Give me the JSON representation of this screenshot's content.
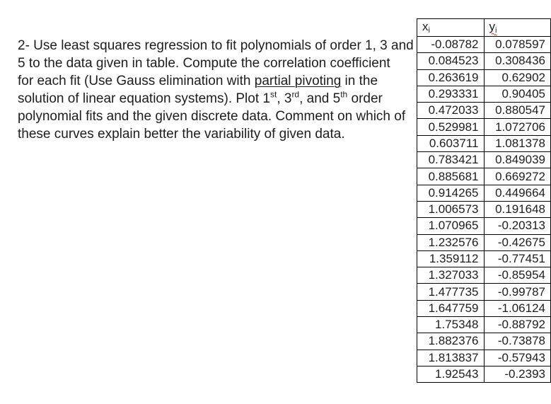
{
  "colors": {
    "text": "#1d1d1d",
    "table_border": "#000000",
    "spellcheck_squiggle": "#e0302f",
    "background": "#ffffff"
  },
  "problem": {
    "lines": [
      {
        "segments": [
          {
            "text": "2- Use least squares regression to fit polynomials of order 1, 3 and"
          }
        ]
      },
      {
        "segments": [
          {
            "text": "5 to the data given in table. Compute the correlation coefficient"
          }
        ]
      },
      {
        "segments": [
          {
            "text": "for each fit (Use Gauss elimination with "
          },
          {
            "text": "partial pivoting",
            "underline": true
          },
          {
            "text": " in the"
          }
        ]
      },
      {
        "segments": [
          {
            "text": "solution of linear equation systems). Plot 1"
          },
          {
            "text": "st",
            "superscript": true
          },
          {
            "text": ", 3"
          },
          {
            "text": "rd",
            "superscript": true
          },
          {
            "text": ", and 5"
          },
          {
            "text": "th",
            "superscript": true
          },
          {
            "text": " order"
          }
        ]
      },
      {
        "segments": [
          {
            "text": "polynomial fits and the given discrete data. Comment on which of"
          }
        ]
      },
      {
        "segments": [
          {
            "text": "these curves explain better the variability of given data."
          }
        ]
      }
    ]
  },
  "table": {
    "headers": [
      {
        "base": "x",
        "subscript": "i",
        "spellcheck_underline": false
      },
      {
        "base": "y",
        "subscript": "i",
        "spellcheck_underline": true
      }
    ],
    "rows": [
      [
        "-0.08782",
        "0.078597"
      ],
      [
        "0.084523",
        "0.308436"
      ],
      [
        "0.263619",
        "0.62902"
      ],
      [
        "0.293331",
        "0.90405"
      ],
      [
        "0.472033",
        "0.880547"
      ],
      [
        "0.529981",
        "1.072706"
      ],
      [
        "0.603711",
        "1.081378"
      ],
      [
        "0.783421",
        "0.849039"
      ],
      [
        "0.885681",
        "0.669272"
      ],
      [
        "0.914265",
        "0.449664"
      ],
      [
        "1.006573",
        "0.191648"
      ],
      [
        "1.070965",
        "-0.20313"
      ],
      [
        "1.232576",
        "-0.42675"
      ],
      [
        "1.359112",
        "-0.77451"
      ],
      [
        "1.327033",
        "-0.85954"
      ],
      [
        "1.477735",
        "-0.99787"
      ],
      [
        "1.647759",
        "-1.06124"
      ],
      [
        "1.75348",
        "-0.88792"
      ],
      [
        "1.882376",
        "-0.73878"
      ],
      [
        "1.813837",
        "-0.57943"
      ],
      [
        "1.92543",
        "-0.2393"
      ]
    ]
  }
}
